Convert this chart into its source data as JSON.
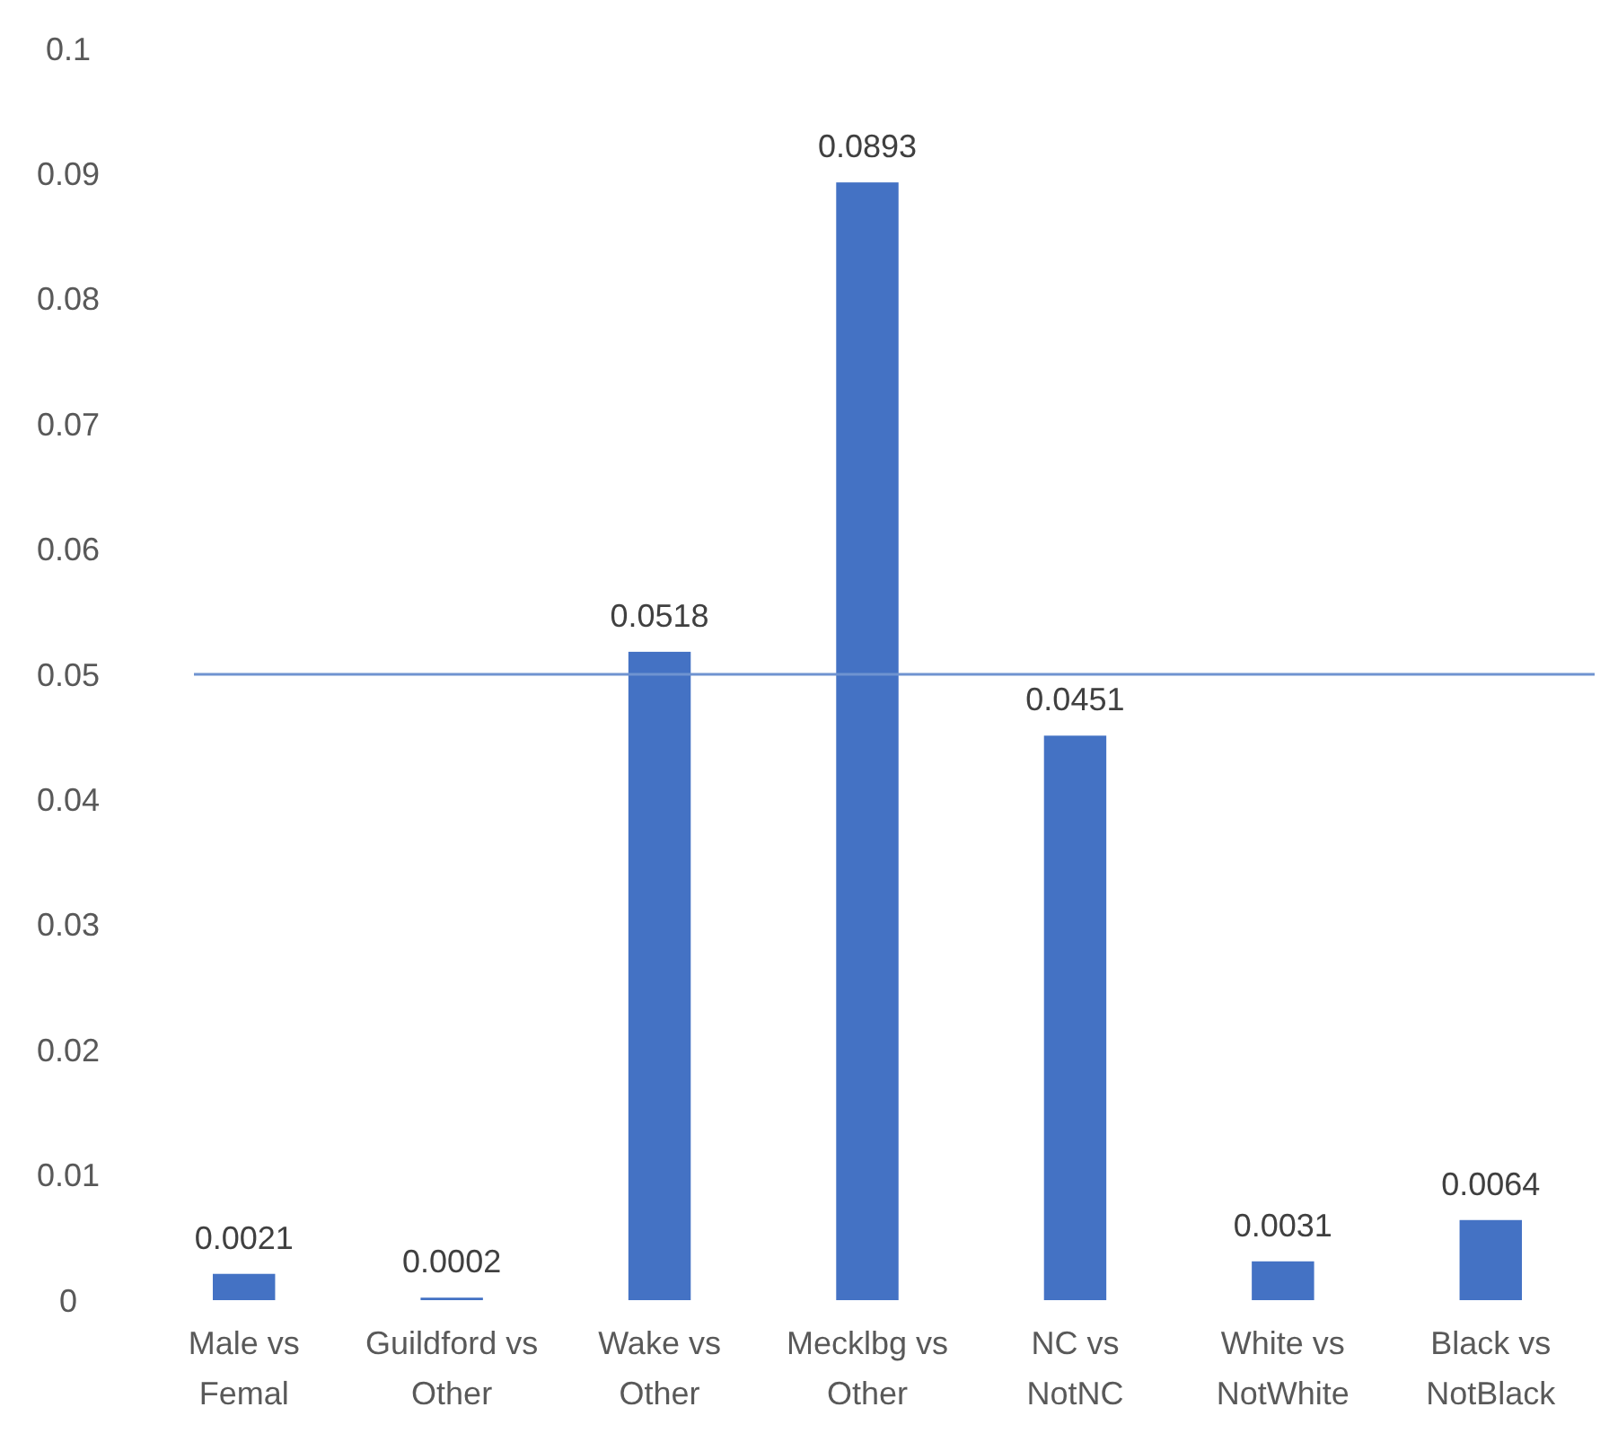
{
  "chart_data": {
    "type": "bar",
    "categories": [
      "Male vs Femal",
      "Guildford vs Other",
      "Wake vs Other",
      "Mecklbg vs Other",
      "NC vs NotNC",
      "White vs NotWhite",
      "Black vs NotBlack"
    ],
    "values": [
      0.0021,
      0.0002,
      0.0518,
      0.0893,
      0.0451,
      0.0031,
      0.0064
    ],
    "color": "#4472c4",
    "data_labels": true,
    "ylim": [
      0,
      0.1
    ],
    "yticks": [
      0,
      0.01,
      0.02,
      0.03,
      0.04,
      0.05,
      0.06,
      0.07,
      0.08,
      0.09,
      0.1
    ],
    "grid": false,
    "ref_lines": [
      {
        "axis": "y",
        "value": 0.05,
        "color": "#6f93d0"
      }
    ]
  }
}
